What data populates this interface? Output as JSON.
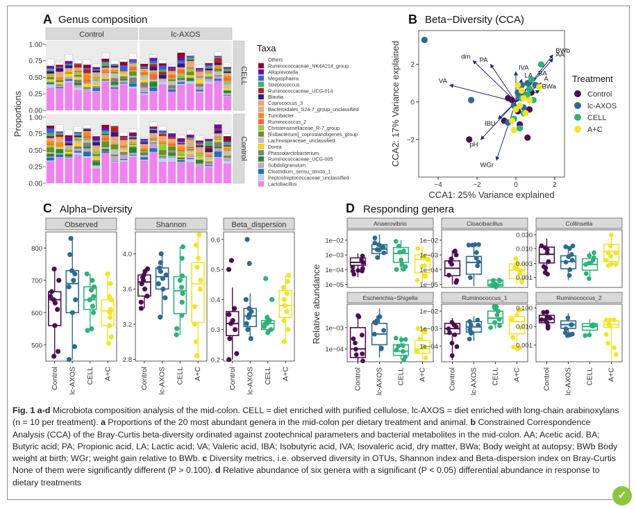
{
  "panelA": {
    "letter": "A",
    "title": "Genus composition",
    "ylabel": "Proportions",
    "strip_top": [
      "Control",
      "lc-AXOS"
    ],
    "strip_right": [
      "CELL",
      "Control"
    ],
    "yticks": [
      "0.00",
      "0.25",
      "0.50",
      "0.75",
      "1.00"
    ],
    "legend_title": "Taxa",
    "taxa": [
      {
        "name": "Others",
        "color": "#ffffff"
      },
      {
        "name": "Ruminococcaceae_NK4A214_group",
        "color": "#8b0026"
      },
      {
        "name": "Alloprevotella",
        "color": "#6a0dad"
      },
      {
        "name": "Megasphaera",
        "color": "#3d5fd6"
      },
      {
        "name": "Streptococcus",
        "color": "#3cb371"
      },
      {
        "name": "Ruminococcaceae_UCG-014",
        "color": "#b22222"
      },
      {
        "name": "Blautia",
        "color": "#2a1a8a"
      },
      {
        "name": "Coprococcus_3",
        "color": "#f4a460"
      },
      {
        "name": "Bacteroidales_S24-7_group_unclassified",
        "color": "#d2b48c"
      },
      {
        "name": "Turicibacter",
        "color": "#ff8c00"
      },
      {
        "name": "Ruminococcus_2",
        "color": "#ff6347"
      },
      {
        "name": "Christensenellaceae_R-7_group",
        "color": "#9acd32"
      },
      {
        "name": "[Eubacterium]_coprostanoligenes_group",
        "color": "#6b8e23"
      },
      {
        "name": "Lachnospiraceae_unclassified",
        "color": "#c0c0c0"
      },
      {
        "name": "Dorea",
        "color": "#ffd700"
      },
      {
        "name": "Phascolarctobacterium",
        "color": "#808080"
      },
      {
        "name": "Ruminococcaceae_UCG-005",
        "color": "#228b22"
      },
      {
        "name": "Subdoligranulum",
        "color": "#c8a2c8"
      },
      {
        "name": "Clostridium_sensu_stricto_1",
        "color": "#1f6fbf"
      },
      {
        "name": "Peptostreptococcaceae_unclassified",
        "color": "#bcd2ee"
      },
      {
        "name": "Lactobacillus",
        "color": "#ee82ee"
      }
    ]
  },
  "panelB": {
    "letter": "B",
    "title": "Beta−Diversity (CCA)",
    "xlabel": "CCA1: 25% Variance explained",
    "ylabel": "CCA2: 17% Variance explained",
    "xticks": [
      "−4",
      "−2",
      "0",
      "2"
    ],
    "yticks": [
      "−2",
      "0",
      "2"
    ],
    "legend_title": "Treatment",
    "treatments": [
      {
        "name": "Control",
        "color": "#4a0f4e"
      },
      {
        "name": "lc-AXOS",
        "color": "#2f6a8e"
      },
      {
        "name": "CELL",
        "color": "#2fb27a"
      },
      {
        "name": "A+C",
        "color": "#f2e42a"
      }
    ],
    "vectors": [
      {
        "label": "BWb",
        "x": 1.9,
        "y": 2.5
      },
      {
        "label": "AA",
        "x": 1.9,
        "y": 2.3
      },
      {
        "label": "dm",
        "x": -2.2,
        "y": 2.2
      },
      {
        "label": "PA",
        "x": -1.3,
        "y": 2.0
      },
      {
        "label": "IVA",
        "x": 0.0,
        "y": 1.6
      },
      {
        "label": "BA",
        "x": 1.0,
        "y": 1.3
      },
      {
        "label": "LA",
        "x": 0.3,
        "y": 1.2
      },
      {
        "label": "A",
        "x": 1.3,
        "y": 1.0
      },
      {
        "label": "BWa",
        "x": 1.2,
        "y": 0.6
      },
      {
        "label": "VA",
        "x": -3.4,
        "y": 0.9
      },
      {
        "label": "IBU",
        "x": -0.9,
        "y": -0.9
      },
      {
        "label": "pH",
        "x": -1.8,
        "y": -2.0
      },
      {
        "label": "WGr",
        "x": -1.0,
        "y": -3.1
      }
    ],
    "points": [
      {
        "t": "Control",
        "x": -2.4,
        "y": -2.0
      },
      {
        "t": "Control",
        "x": -0.2,
        "y": 0.1
      },
      {
        "t": "Control",
        "x": 0.4,
        "y": 0.4
      },
      {
        "t": "Control",
        "x": 0.7,
        "y": -0.4
      },
      {
        "t": "Control",
        "x": 0.2,
        "y": -1.2
      },
      {
        "t": "Control",
        "x": -0.6,
        "y": -1.0
      },
      {
        "t": "Control",
        "x": 0.8,
        "y": 0.5
      },
      {
        "t": "Control",
        "x": 0.1,
        "y": -0.5
      },
      {
        "t": "Control",
        "x": -0.4,
        "y": 0.2
      },
      {
        "t": "Control",
        "x": 0.6,
        "y": -1.9
      },
      {
        "t": "lc-AXOS",
        "x": -4.7,
        "y": 3.3
      },
      {
        "t": "lc-AXOS",
        "x": -2.3,
        "y": 0.1
      },
      {
        "t": "lc-AXOS",
        "x": -0.4,
        "y": -1.1
      },
      {
        "t": "lc-AXOS",
        "x": 0.2,
        "y": 0.3
      },
      {
        "t": "lc-AXOS",
        "x": 0.3,
        "y": 0.9
      },
      {
        "t": "lc-AXOS",
        "x": 0.6,
        "y": 1.0
      },
      {
        "t": "lc-AXOS",
        "x": 0.4,
        "y": -0.3
      },
      {
        "t": "lc-AXOS",
        "x": 1.0,
        "y": 0.9
      },
      {
        "t": "lc-AXOS",
        "x": 0.1,
        "y": 0.5
      },
      {
        "t": "lc-AXOS",
        "x": -0.1,
        "y": -0.2
      },
      {
        "t": "CELL",
        "x": 1.3,
        "y": 2.0
      },
      {
        "t": "CELL",
        "x": 0.6,
        "y": 0.4
      },
      {
        "t": "CELL",
        "x": 0.9,
        "y": 0.1
      },
      {
        "t": "CELL",
        "x": 0.4,
        "y": -0.6
      },
      {
        "t": "CELL",
        "x": 0.2,
        "y": -1.4
      },
      {
        "t": "CELL",
        "x": 0.8,
        "y": 1.2
      },
      {
        "t": "CELL",
        "x": 0.3,
        "y": 0.2
      },
      {
        "t": "CELL",
        "x": 0.7,
        "y": 0.7
      },
      {
        "t": "CELL",
        "x": -0.1,
        "y": -0.9
      },
      {
        "t": "CELL",
        "x": 0.5,
        "y": 0.3
      },
      {
        "t": "A+C",
        "x": 0.2,
        "y": -0.2
      },
      {
        "t": "A+C",
        "x": 0.7,
        "y": 0.1
      },
      {
        "t": "A+C",
        "x": 0.3,
        "y": 0.6
      },
      {
        "t": "A+C",
        "x": -0.2,
        "y": -1.0
      },
      {
        "t": "A+C",
        "x": 0.5,
        "y": -0.6
      },
      {
        "t": "A+C",
        "x": 1.2,
        "y": 0.8
      },
      {
        "t": "A+C",
        "x": 0.0,
        "y": -0.4
      },
      {
        "t": "A+C",
        "x": -0.1,
        "y": -1.5
      },
      {
        "t": "A+C",
        "x": 0.4,
        "y": 0.2
      },
      {
        "t": "A+C",
        "x": 0.1,
        "y": 0.9
      }
    ]
  },
  "panelC": {
    "letter": "C",
    "title": "Alpha−Diversity",
    "groups": [
      "Control",
      "lc-AXOS",
      "CELL",
      "A+C"
    ],
    "facets": [
      {
        "name": "Observed",
        "yticks": [
          "500",
          "600",
          "700",
          "800"
        ],
        "ylim": [
          450,
          850
        ],
        "boxes": [
          {
            "q1": 560,
            "med": 640,
            "q3": 665,
            "lo": 465,
            "hi": 735,
            "pts": [
              465,
              480,
              560,
              610,
              630,
              640,
              650,
              665,
              700,
              735
            ]
          },
          {
            "q1": 600,
            "med": 690,
            "q3": 730,
            "lo": 455,
            "hi": 830,
            "pts": [
              455,
              495,
              600,
              640,
              680,
              700,
              720,
              730,
              780,
              830
            ]
          },
          {
            "q1": 610,
            "med": 640,
            "q3": 680,
            "lo": 545,
            "hi": 720,
            "pts": [
              545,
              550,
              600,
              620,
              640,
              650,
              670,
              680,
              700,
              720
            ]
          },
          {
            "q1": 560,
            "med": 605,
            "q3": 640,
            "lo": 505,
            "hi": 720,
            "pts": [
              505,
              525,
              560,
              585,
              600,
              610,
              640,
              650,
              690,
              720
            ]
          }
        ]
      },
      {
        "name": "Shannon",
        "yticks": [
          "2.8",
          "3.2",
          "3.6",
          "4.0"
        ],
        "ylim": [
          2.78,
          4.25
        ],
        "boxes": [
          {
            "q1": 3.52,
            "med": 3.68,
            "q3": 3.76,
            "lo": 3.38,
            "hi": 3.83,
            "pts": [
              3.38,
              3.45,
              3.52,
              3.6,
              3.66,
              3.7,
              3.73,
              3.76,
              3.8,
              3.83
            ]
          },
          {
            "q1": 3.6,
            "med": 3.74,
            "q3": 3.84,
            "lo": 3.28,
            "hi": 4.0,
            "pts": [
              3.28,
              3.5,
              3.6,
              3.66,
              3.72,
              3.76,
              3.8,
              3.84,
              3.9,
              4.0
            ]
          },
          {
            "q1": 3.32,
            "med": 3.58,
            "q3": 3.74,
            "lo": 3.08,
            "hi": 4.08,
            "pts": [
              3.08,
              3.15,
              3.3,
              3.45,
              3.55,
              3.62,
              3.7,
              3.75,
              3.95,
              4.08
            ]
          },
          {
            "q1": 3.22,
            "med": 3.66,
            "q3": 3.9,
            "lo": 2.84,
            "hi": 4.22,
            "pts": [
              2.84,
              3.0,
              3.2,
              3.4,
              3.6,
              3.7,
              3.85,
              3.95,
              4.1,
              4.22
            ]
          }
        ]
      },
      {
        "name": "Beta_dispersion",
        "yticks": [
          "0.2",
          "0.3",
          "0.4",
          "0.5",
          "0.6"
        ],
        "ylim": [
          0.195,
          0.625
        ],
        "boxes": [
          {
            "q1": 0.28,
            "med": 0.32,
            "q3": 0.36,
            "lo": 0.2,
            "hi": 0.44,
            "pts": [
              0.2,
              0.22,
              0.27,
              0.3,
              0.32,
              0.33,
              0.35,
              0.37,
              0.5,
              0.53
            ]
          },
          {
            "q1": 0.31,
            "med": 0.345,
            "q3": 0.37,
            "lo": 0.27,
            "hi": 0.42,
            "pts": [
              0.27,
              0.3,
              0.32,
              0.34,
              0.35,
              0.36,
              0.37,
              0.4,
              0.52,
              0.6
            ]
          },
          {
            "q1": 0.3,
            "med": 0.32,
            "q3": 0.33,
            "lo": 0.29,
            "hi": 0.35,
            "pts": [
              0.29,
              0.3,
              0.31,
              0.32,
              0.32,
              0.33,
              0.33,
              0.34,
              0.4,
              0.47
            ]
          },
          {
            "q1": 0.34,
            "med": 0.38,
            "q3": 0.43,
            "lo": 0.26,
            "hi": 0.48,
            "pts": [
              0.26,
              0.3,
              0.33,
              0.36,
              0.38,
              0.4,
              0.42,
              0.44,
              0.46,
              0.48
            ]
          }
        ]
      }
    ]
  },
  "panelD": {
    "letter": "D",
    "title": "Responding genera",
    "ylabel": "Relative abundance",
    "groups": [
      "Control",
      "lc-AXOS",
      "CELL",
      "A+C"
    ],
    "facets": [
      {
        "name": "Anaerovibrio",
        "yticks": [
          {
            "l": "1e−02",
            "v": -2
          },
          {
            "l": "1e−03",
            "v": -3
          },
          {
            "l": "1e−04",
            "v": -4
          },
          {
            "l": "1e−05",
            "v": -5
          }
        ],
        "ylim": [
          -5.2,
          -1.3
        ],
        "boxes": [
          {
            "q1": -3.7,
            "med": -3.5,
            "q3": -3.2,
            "lo": -4.5,
            "hi": -2.9
          },
          {
            "q1": -2.9,
            "med": -2.6,
            "q3": -2.3,
            "lo": -3.3,
            "hi": -1.6
          },
          {
            "q1": -3.5,
            "med": -2.9,
            "q3": -2.5,
            "lo": -4.0,
            "hi": -2.0
          },
          {
            "q1": -4.2,
            "med": -3.3,
            "q3": -3.0,
            "lo": -4.9,
            "hi": -2.4
          }
        ]
      },
      {
        "name": "Cloacibacillus",
        "yticks": [
          {
            "l": "1e−02",
            "v": -2
          },
          {
            "l": "1e−03",
            "v": -3
          },
          {
            "l": "1e−04",
            "v": -4
          },
          {
            "l": "1e−05",
            "v": -5
          }
        ],
        "ylim": [
          -5.2,
          -1.3
        ],
        "boxes": [
          {
            "q1": -4.4,
            "med": -3.9,
            "q3": -3.4,
            "lo": -5.0,
            "hi": -2.7
          },
          {
            "q1": -4.3,
            "med": -3.5,
            "q3": -3.1,
            "lo": -5.1,
            "hi": -2.2
          },
          {
            "q1": -5.1,
            "med": -5.0,
            "q3": -4.7,
            "lo": -5.2,
            "hi": -4.6
          },
          {
            "q1": -4.6,
            "med": -4.0,
            "q3": -3.6,
            "lo": -5.0,
            "hi": -3.2
          }
        ]
      },
      {
        "name": "Collinsella",
        "yticks": [
          {
            "l": "0.030",
            "v": -1.52
          },
          {
            "l": "0.010",
            "v": -2
          },
          {
            "l": "0.003",
            "v": -2.52
          },
          {
            "l": "0.001",
            "v": -3
          }
        ],
        "ylim": [
          -3.35,
          -1.35
        ],
        "boxes": [
          {
            "q1": -2.5,
            "med": -2.2,
            "q3": -1.95,
            "lo": -2.9,
            "hi": -1.65
          },
          {
            "q1": -2.7,
            "med": -2.45,
            "q3": -2.25,
            "lo": -3.1,
            "hi": -1.9
          },
          {
            "q1": -2.75,
            "med": -2.55,
            "q3": -2.35,
            "lo": -3.1,
            "hi": -2.1
          },
          {
            "q1": -2.45,
            "med": -2.1,
            "q3": -1.85,
            "lo": -2.6,
            "hi": -1.5
          }
        ]
      },
      {
        "name": "Escherichia−Shigella",
        "yticks": [
          {
            "l": "1e−03",
            "v": -3
          },
          {
            "l": "1e−04",
            "v": -4
          }
        ],
        "ylim": [
          -4.6,
          -1.9
        ],
        "boxes": [
          {
            "q1": -4.4,
            "med": -4.0,
            "q3": -3.0,
            "lo": -4.6,
            "hi": -2.4
          },
          {
            "q1": -3.8,
            "med": -3.3,
            "q3": -2.8,
            "lo": -4.4,
            "hi": -2.1
          },
          {
            "q1": -4.3,
            "med": -4.1,
            "q3": -3.8,
            "lo": -4.5,
            "hi": -3.4
          },
          {
            "q1": -4.2,
            "med": -4.0,
            "q3": -3.6,
            "lo": -4.5,
            "hi": -3.0
          }
        ]
      },
      {
        "name": "Ruminococcus_1",
        "yticks": [
          {
            "l": "1e−02",
            "v": -2
          },
          {
            "l": "1e−03",
            "v": -3
          },
          {
            "l": "1e−04",
            "v": -4
          }
        ],
        "ylim": [
          -4.9,
          -1.6
        ],
        "boxes": [
          {
            "q1": -3.3,
            "med": -3.0,
            "q3": -2.7,
            "lo": -4.8,
            "hi": -2.4
          },
          {
            "q1": -3.2,
            "med": -2.9,
            "q3": -2.6,
            "lo": -3.7,
            "hi": -2.3
          },
          {
            "q1": -2.7,
            "med": -2.4,
            "q3": -2.0,
            "lo": -3.0,
            "hi": -1.7
          },
          {
            "q1": -3.3,
            "med": -2.6,
            "q3": -2.3,
            "lo": -4.3,
            "hi": -1.9
          }
        ]
      },
      {
        "name": "Ruminococcus_2",
        "yticks": [
          {
            "l": "0.100",
            "v": -1
          },
          {
            "l": "0.010",
            "v": -2
          },
          {
            "l": "0.001",
            "v": -3
          }
        ],
        "ylim": [
          -3.9,
          -0.8
        ],
        "boxes": [
          {
            "q1": -1.8,
            "med": -1.6,
            "q3": -1.4,
            "lo": -2.1,
            "hi": -1.2
          },
          {
            "q1": -2.1,
            "med": -1.9,
            "q3": -1.7,
            "lo": -2.6,
            "hi": -1.3
          },
          {
            "q1": -2.2,
            "med": -2.0,
            "q3": -1.85,
            "lo": -2.5,
            "hi": -1.6
          },
          {
            "q1": -2.05,
            "med": -1.9,
            "q3": -1.7,
            "lo": -3.8,
            "hi": -1.6
          }
        ]
      }
    ]
  },
  "caption": {
    "label": "Fig. 1 a-d",
    "text": " Microbiota composition analysis of the mid-colon. CELL = diet enriched with purified cellulose, lc-AXOS = diet enriched with long-chain arabinoxylans (n = 10 per treatment). ",
    "a_label": "a",
    "a_text": " Proportions of the 20 most abundant genera in the mid-colon per dietary treatment and animal. ",
    "b_label": "b",
    "b_text": " Constrained Correspondence Analysis (CCA) of the Bray-Curtis beta-diversity ordinated against zootechnical parameters and bacterial metabolites in the mid-colon. AA; Acetic acid, BA; Butyric acid; PA; Propionic acid, LA; Lactic acid; VA; Valeric acid, IBA; Isobutyric acid, IVA; Isovaleric acid, dry matter, BWa; Body weight at autopsy; BWb Body weight at birth; WGr; weight gain relative to BWb. ",
    "c_label": "c",
    "c_text": " Diversity metrics, i.e. observed diversity in OTUs, Shannon index and Beta-dispersion index on Bray-Curtis None of them were significantly different (P > 0.100). ",
    "d_label": "d",
    "d_text": " Relative abundance of six genera with a significant (P < 0.05) differential abundance in response to dietary treatments"
  }
}
